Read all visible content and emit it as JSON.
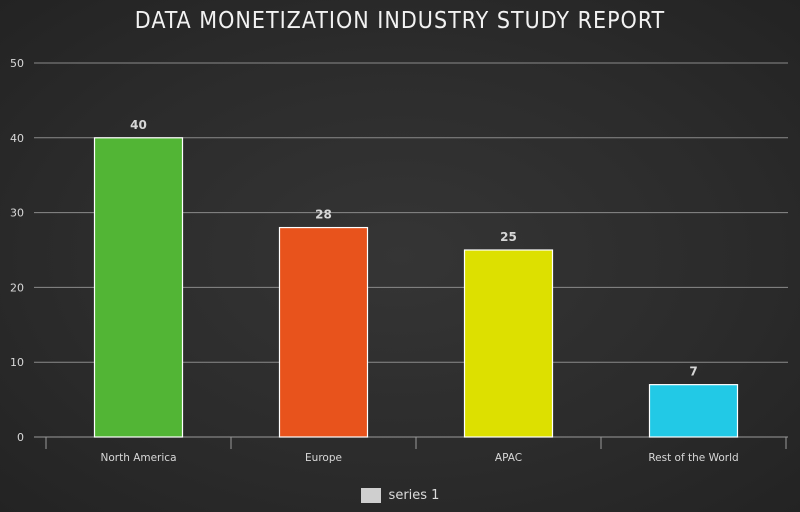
{
  "chart_data": {
    "type": "bar",
    "title": "DATA MONETIZATION INDUSTRY STUDY REPORT",
    "categories": [
      "North America",
      "Europe",
      "APAC",
      "Rest of the World"
    ],
    "series": [
      {
        "name": "series 1",
        "values": [
          40,
          28,
          25,
          7
        ]
      }
    ],
    "bar_colors": [
      "#52b535",
      "#e8531c",
      "#dde000",
      "#22c9e6"
    ],
    "data_labels": [
      "40",
      "28",
      "25",
      "7"
    ],
    "y_ticks": [
      "0",
      "10",
      "20",
      "30",
      "40",
      "50"
    ],
    "ylim": [
      0,
      50
    ],
    "grid": true,
    "legend": "bottom",
    "xlabel": "",
    "ylabel": ""
  }
}
